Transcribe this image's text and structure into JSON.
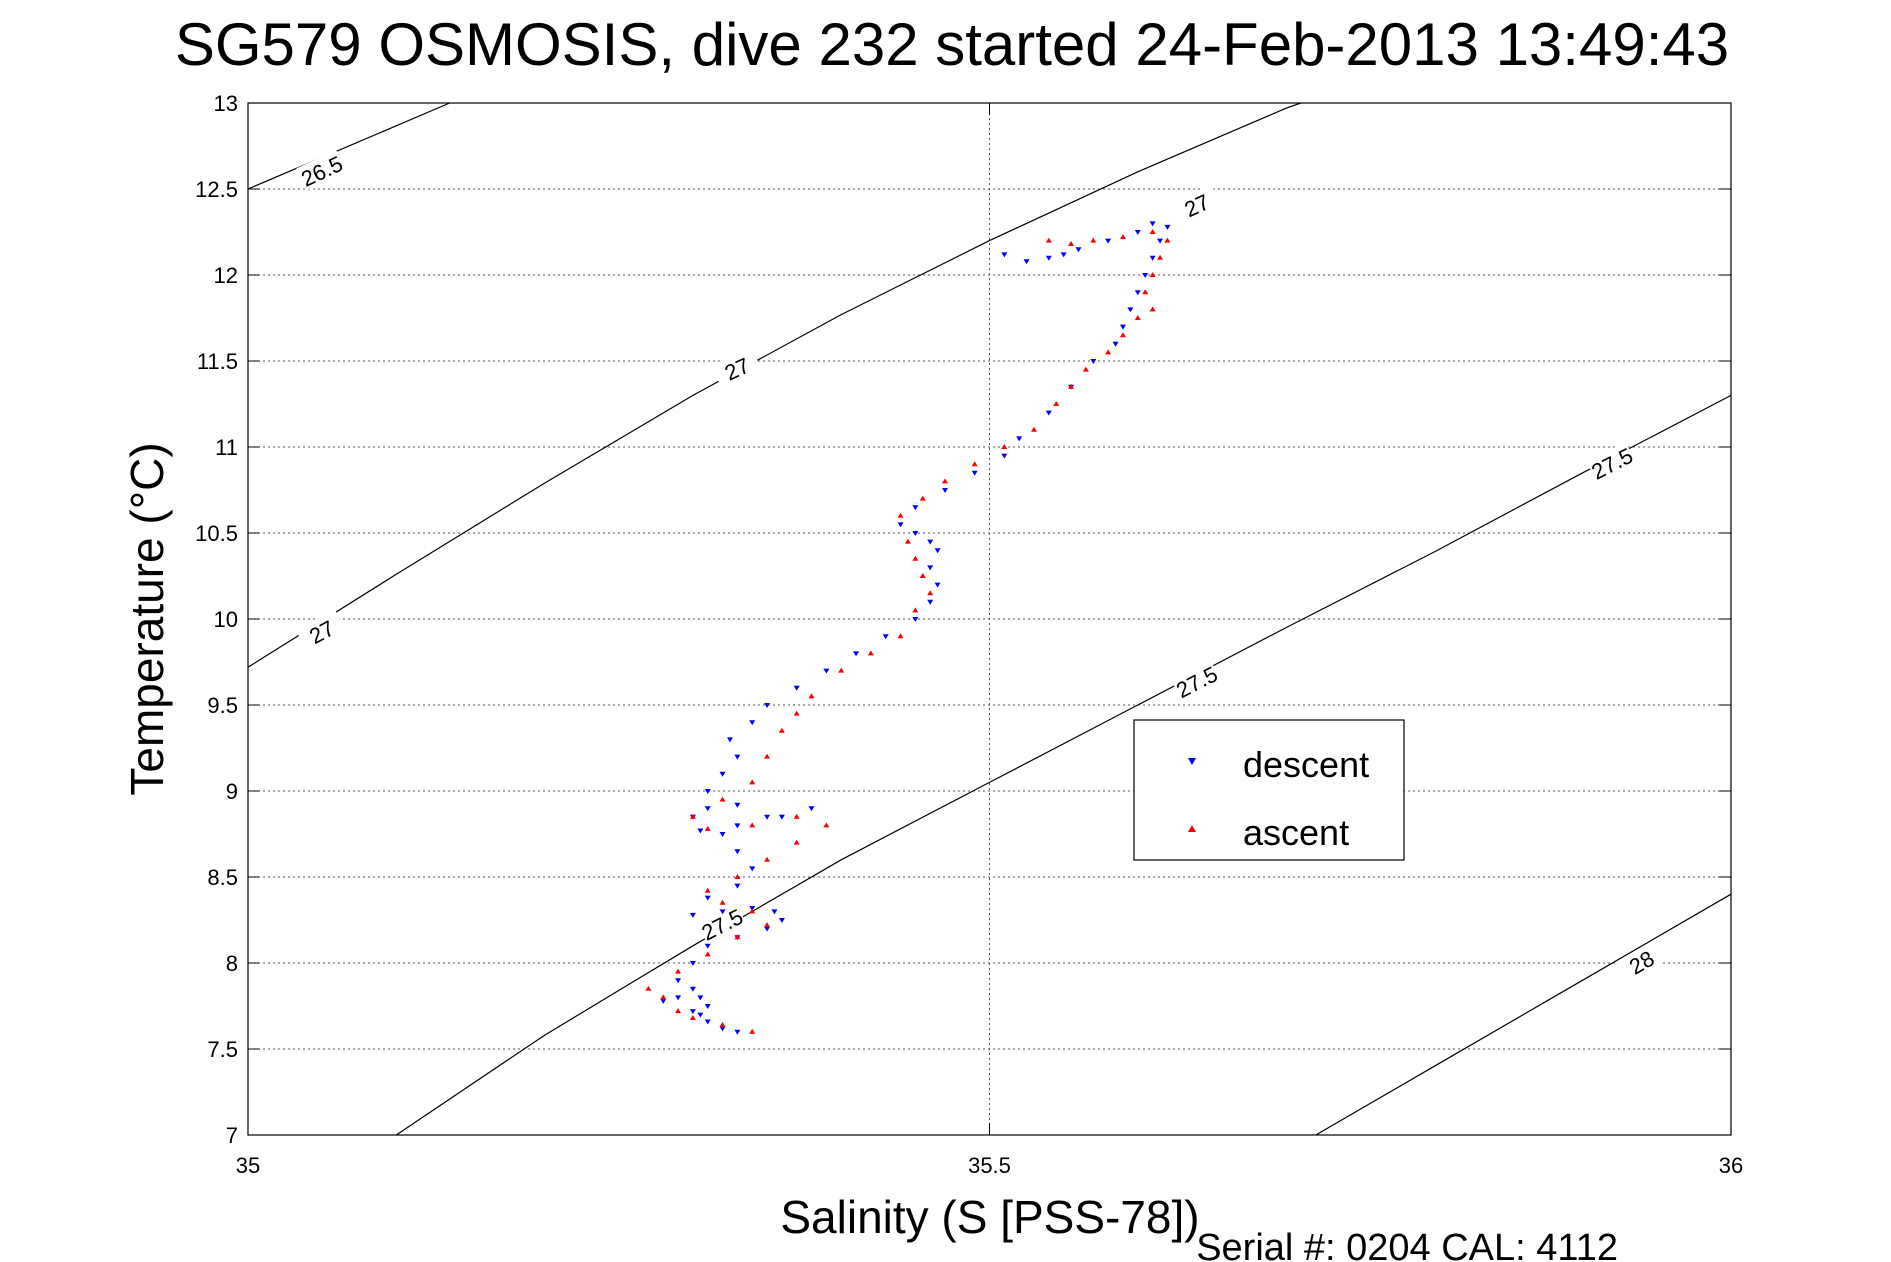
{
  "chart_data": {
    "type": "scatter",
    "title": "SG579 OSMOSIS, dive 232 started 24-Feb-2013 13:49:43",
    "xlabel": "Salinity (S [PSS-78])",
    "ylabel": "Temperature (°C)",
    "xlim": [
      35,
      36
    ],
    "ylim": [
      7,
      13
    ],
    "xticks": [
      "35",
      "35.5",
      "36"
    ],
    "yticks": [
      "7",
      "7.5",
      "8",
      "8.5",
      "9",
      "9.5",
      "10",
      "10.5",
      "11",
      "11.5",
      "12",
      "12.5",
      "13"
    ],
    "grid": true,
    "legend_position": "center-right",
    "density_contours": [
      {
        "level": 26.5,
        "points": [
          [
            35.0,
            12.5
          ],
          [
            35.136,
            13.0
          ]
        ]
      },
      {
        "level": 27,
        "points": [
          [
            35.0,
            9.72
          ],
          [
            35.1,
            10.26
          ],
          [
            35.2,
            10.79
          ],
          [
            35.3,
            11.3
          ],
          [
            35.4,
            11.77
          ],
          [
            35.5,
            12.2
          ],
          [
            35.6,
            12.6
          ],
          [
            35.7,
            12.97
          ],
          [
            35.71,
            13.0
          ]
        ]
      },
      {
        "level": 27.5,
        "points": [
          [
            35.1,
            7.0
          ],
          [
            35.2,
            7.58
          ],
          [
            35.3,
            8.1
          ],
          [
            35.4,
            8.6
          ],
          [
            35.5,
            9.05
          ],
          [
            35.6,
            9.5
          ],
          [
            35.7,
            9.95
          ],
          [
            35.8,
            10.39
          ],
          [
            35.9,
            10.85
          ],
          [
            36.0,
            11.3
          ]
        ]
      },
      {
        "level": 28,
        "points": [
          [
            35.72,
            7.0
          ],
          [
            35.8,
            7.4
          ],
          [
            35.9,
            7.9
          ],
          [
            36.0,
            8.4
          ]
        ]
      }
    ],
    "contour_labels": [
      {
        "text": "26.5",
        "x": 35.05,
        "y": 12.6,
        "angle": -25
      },
      {
        "text": "27",
        "x": 35.05,
        "y": 9.92,
        "angle": -28
      },
      {
        "text": "27",
        "x": 35.33,
        "y": 11.45,
        "angle": -25
      },
      {
        "text": "27",
        "x": 35.64,
        "y": 12.4,
        "angle": -25
      },
      {
        "text": "27.5",
        "x": 35.32,
        "y": 8.22,
        "angle": -27
      },
      {
        "text": "27.5",
        "x": 35.64,
        "y": 9.63,
        "angle": -27
      },
      {
        "text": "27.5",
        "x": 35.92,
        "y": 10.9,
        "angle": -27
      },
      {
        "text": "28",
        "x": 35.94,
        "y": 8.0,
        "angle": -30
      }
    ],
    "series": [
      {
        "name": "descent",
        "color": "#0000ff",
        "marker": "triangle-down",
        "points": [
          [
            35.33,
            7.6
          ],
          [
            35.32,
            7.62
          ],
          [
            35.31,
            7.66
          ],
          [
            35.305,
            7.7
          ],
          [
            35.3,
            7.72
          ],
          [
            35.31,
            7.75
          ],
          [
            35.305,
            7.8
          ],
          [
            35.3,
            7.85
          ],
          [
            35.29,
            7.8
          ],
          [
            35.28,
            7.78
          ],
          [
            35.29,
            7.9
          ],
          [
            35.3,
            8.0
          ],
          [
            35.31,
            8.1
          ],
          [
            35.33,
            8.15
          ],
          [
            35.35,
            8.2
          ],
          [
            35.36,
            8.25
          ],
          [
            35.355,
            8.3
          ],
          [
            35.34,
            8.32
          ],
          [
            35.32,
            8.3
          ],
          [
            35.3,
            8.28
          ],
          [
            35.31,
            8.38
          ],
          [
            35.33,
            8.45
          ],
          [
            35.34,
            8.55
          ],
          [
            35.33,
            8.65
          ],
          [
            35.32,
            8.75
          ],
          [
            35.305,
            8.77
          ],
          [
            35.33,
            8.8
          ],
          [
            35.35,
            8.85
          ],
          [
            35.38,
            8.9
          ],
          [
            35.36,
            8.85
          ],
          [
            35.33,
            8.92
          ],
          [
            35.31,
            8.9
          ],
          [
            35.3,
            8.85
          ],
          [
            35.31,
            9.0
          ],
          [
            35.32,
            9.1
          ],
          [
            35.33,
            9.2
          ],
          [
            35.325,
            9.3
          ],
          [
            35.34,
            9.4
          ],
          [
            35.35,
            9.5
          ],
          [
            35.37,
            9.6
          ],
          [
            35.39,
            9.7
          ],
          [
            35.41,
            9.8
          ],
          [
            35.43,
            9.9
          ],
          [
            35.45,
            10.0
          ],
          [
            35.46,
            10.1
          ],
          [
            35.465,
            10.2
          ],
          [
            35.46,
            10.3
          ],
          [
            35.465,
            10.4
          ],
          [
            35.46,
            10.45
          ],
          [
            35.45,
            10.5
          ],
          [
            35.44,
            10.55
          ],
          [
            35.45,
            10.65
          ],
          [
            35.47,
            10.75
          ],
          [
            35.49,
            10.85
          ],
          [
            35.51,
            10.95
          ],
          [
            35.52,
            11.05
          ],
          [
            35.54,
            11.2
          ],
          [
            35.555,
            11.35
          ],
          [
            35.57,
            11.5
          ],
          [
            35.585,
            11.6
          ],
          [
            35.59,
            11.7
          ],
          [
            35.595,
            11.8
          ],
          [
            35.6,
            11.9
          ],
          [
            35.605,
            12.0
          ],
          [
            35.61,
            12.1
          ],
          [
            35.615,
            12.2
          ],
          [
            35.62,
            12.28
          ],
          [
            35.61,
            12.3
          ],
          [
            35.6,
            12.25
          ],
          [
            35.58,
            12.2
          ],
          [
            35.56,
            12.15
          ],
          [
            35.55,
            12.12
          ],
          [
            35.54,
            12.1
          ],
          [
            35.525,
            12.08
          ],
          [
            35.51,
            12.12
          ]
        ]
      },
      {
        "name": "ascent",
        "color": "#ff0000",
        "marker": "triangle-up",
        "points": [
          [
            35.34,
            7.6
          ],
          [
            35.32,
            7.64
          ],
          [
            35.3,
            7.68
          ],
          [
            35.29,
            7.72
          ],
          [
            35.28,
            7.8
          ],
          [
            35.27,
            7.85
          ],
          [
            35.29,
            7.95
          ],
          [
            35.31,
            8.05
          ],
          [
            35.33,
            8.15
          ],
          [
            35.35,
            8.22
          ],
          [
            35.34,
            8.3
          ],
          [
            35.32,
            8.35
          ],
          [
            35.31,
            8.42
          ],
          [
            35.33,
            8.5
          ],
          [
            35.35,
            8.6
          ],
          [
            35.37,
            8.7
          ],
          [
            35.39,
            8.8
          ],
          [
            35.37,
            8.85
          ],
          [
            35.34,
            8.8
          ],
          [
            35.31,
            8.78
          ],
          [
            35.3,
            8.85
          ],
          [
            35.32,
            8.95
          ],
          [
            35.34,
            9.05
          ],
          [
            35.35,
            9.2
          ],
          [
            35.36,
            9.35
          ],
          [
            35.37,
            9.45
          ],
          [
            35.38,
            9.55
          ],
          [
            35.4,
            9.7
          ],
          [
            35.42,
            9.8
          ],
          [
            35.44,
            9.9
          ],
          [
            35.45,
            10.05
          ],
          [
            35.46,
            10.15
          ],
          [
            35.455,
            10.25
          ],
          [
            35.45,
            10.35
          ],
          [
            35.445,
            10.45
          ],
          [
            35.44,
            10.6
          ],
          [
            35.455,
            10.7
          ],
          [
            35.47,
            10.8
          ],
          [
            35.49,
            10.9
          ],
          [
            35.51,
            11.0
          ],
          [
            35.53,
            11.1
          ],
          [
            35.545,
            11.25
          ],
          [
            35.555,
            11.35
          ],
          [
            35.565,
            11.45
          ],
          [
            35.58,
            11.55
          ],
          [
            35.59,
            11.65
          ],
          [
            35.6,
            11.75
          ],
          [
            35.61,
            11.8
          ],
          [
            35.605,
            11.9
          ],
          [
            35.61,
            12.0
          ],
          [
            35.615,
            12.1
          ],
          [
            35.62,
            12.2
          ],
          [
            35.61,
            12.25
          ],
          [
            35.59,
            12.22
          ],
          [
            35.57,
            12.2
          ],
          [
            35.555,
            12.18
          ],
          [
            35.54,
            12.2
          ]
        ]
      }
    ],
    "footer": "Serial #: 0204  CAL: 4112"
  }
}
